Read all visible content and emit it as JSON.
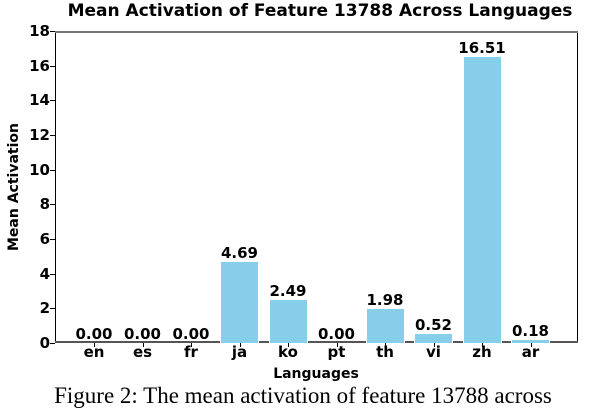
{
  "chart_data": {
    "type": "bar",
    "title": "Mean Activation of Feature 13788 Across Languages",
    "xlabel": "Languages",
    "ylabel": "Mean Activation",
    "categories": [
      "en",
      "es",
      "fr",
      "ja",
      "ko",
      "pt",
      "th",
      "vi",
      "zh",
      "ar"
    ],
    "values": [
      0.0,
      0.0,
      0.0,
      4.69,
      2.49,
      0.0,
      1.98,
      0.52,
      16.51,
      0.18
    ],
    "value_labels": [
      "0.00",
      "0.00",
      "0.00",
      "4.69",
      "2.49",
      "0.00",
      "1.98",
      "0.52",
      "16.51",
      "0.18"
    ],
    "ylim": [
      0,
      18
    ],
    "yticks": [
      "0",
      "2",
      "4",
      "6",
      "8",
      "10",
      "12",
      "14",
      "16",
      "18"
    ],
    "grid": false,
    "legend": null,
    "bar_color": "#87ceeb"
  },
  "caption": "Figure 2: The mean activation of feature 13788 across"
}
